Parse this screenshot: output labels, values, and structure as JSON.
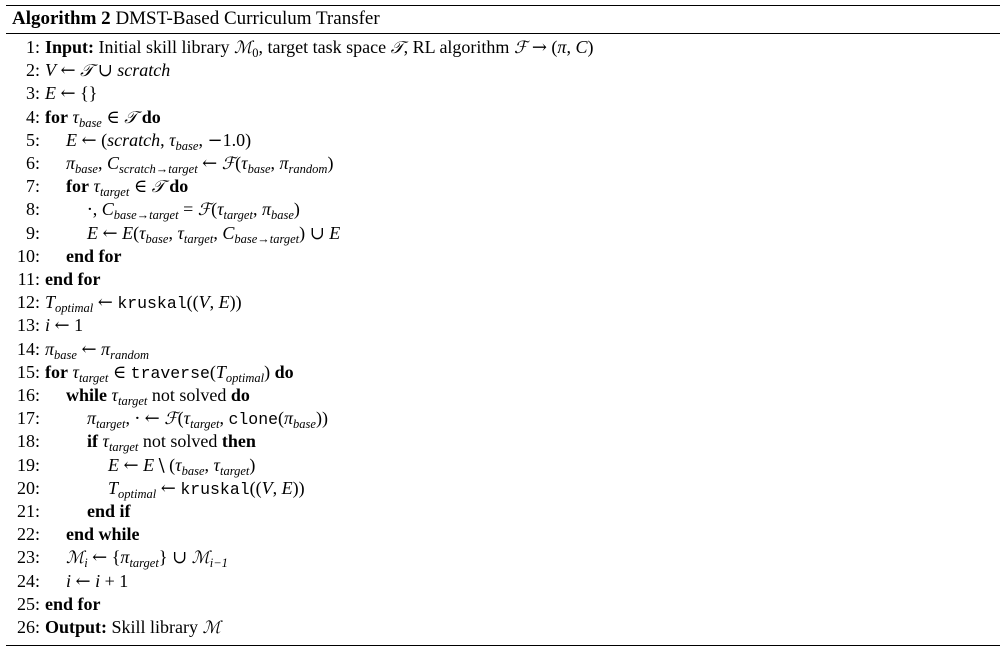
{
  "algorithm": {
    "label": "Algorithm 2",
    "name": "DMST-Based Curriculum Transfer"
  },
  "lines": [
    {
      "n": "1:",
      "indent": 0,
      "html": "<span class='kw'>Input:</span> Initial skill library <span class='sc'>ℳ</span><sub style='font-style:normal'>0</sub>, target task space <span class='sc'>𝒯</span>, RL algorithm <span class='sc'>ℱ</span> <span class='sym'>→</span> (<span class='mi'>π</span>, <span class='mi'>C</span>)"
    },
    {
      "n": "2:",
      "indent": 0,
      "html": "<span class='mi'>V</span> <span class='sym'>←</span> <span class='sc'>𝒯</span> <span class='sym'>∪</span> <span class='mi'>scratch</span>"
    },
    {
      "n": "3:",
      "indent": 0,
      "html": "<span class='mi'>E</span> <span class='sym'>←</span> {}"
    },
    {
      "n": "4:",
      "indent": 0,
      "html": "<span class='kw'>for</span> <span class='mi'>τ</span><sub>base</sub> <span class='sym'>∈</span> <span class='sc'>𝒯</span> <span class='kw'>do</span>"
    },
    {
      "n": "5:",
      "indent": 1,
      "html": "<span class='mi'>E</span> <span class='sym'>←</span> (<span class='mi'>scratch</span>, <span class='mi'>τ</span><sub>base</sub>, <span class='sym'>−</span>1.0)"
    },
    {
      "n": "6:",
      "indent": 1,
      "html": "<span class='mi'>π</span><sub>base</sub>, <span class='mi'>C</span><sub>scratch→target</sub> <span class='sym'>←</span> <span class='sc'>ℱ</span>(<span class='mi'>τ</span><sub>base</sub>, <span class='mi'>π</span><sub>random</sub>)"
    },
    {
      "n": "7:",
      "indent": 1,
      "html": "<span class='kw'>for</span> <span class='mi'>τ</span><sub>target</sub> <span class='sym'>∈</span> <span class='sc'>𝒯</span> <span class='kw'>do</span>"
    },
    {
      "n": "8:",
      "indent": 2,
      "html": "<span class='sym'>·</span>, <span class='mi'>C</span><sub>base→target</sub> = <span class='sc'>ℱ</span>(<span class='mi'>τ</span><sub>target</sub>, <span class='mi'>π</span><sub>base</sub>)"
    },
    {
      "n": "9:",
      "indent": 2,
      "html": "<span class='mi'>E</span> <span class='sym'>←</span> <span class='mi'>E</span>(<span class='mi'>τ</span><sub>base</sub>, <span class='mi'>τ</span><sub>target</sub>, <span class='mi'>C</span><sub>base→target</sub>) <span class='sym'>∪</span> <span class='mi'>E</span>"
    },
    {
      "n": "10:",
      "indent": 1,
      "html": "<span class='kw'>end for</span>"
    },
    {
      "n": "11:",
      "indent": 0,
      "html": "<span class='kw'>end for</span>"
    },
    {
      "n": "12:",
      "indent": 0,
      "html": "<span class='mi'>T</span><sub>optimal</sub> <span class='sym'>←</span> <span class='tt'>kruskal</span>((<span class='mi'>V</span>, <span class='mi'>E</span>))"
    },
    {
      "n": "13:",
      "indent": 0,
      "html": "<span class='mi'>i</span> <span class='sym'>←</span> 1"
    },
    {
      "n": "14:",
      "indent": 0,
      "html": "<span class='mi'>π</span><sub>base</sub> <span class='sym'>←</span> <span class='mi'>π</span><sub>random</sub>"
    },
    {
      "n": "15:",
      "indent": 0,
      "html": "<span class='kw'>for</span> <span class='mi'>τ</span><sub>target</sub> <span class='sym'>∈</span> <span class='tt'>traverse</span>(<span class='mi'>T</span><sub>optimal</sub>) <span class='kw'>do</span>"
    },
    {
      "n": "16:",
      "indent": 1,
      "html": "<span class='kw'>while</span> <span class='mi'>τ</span><sub>target</sub> not solved <span class='kw'>do</span>"
    },
    {
      "n": "17:",
      "indent": 2,
      "html": "<span class='mi'>π</span><sub>target</sub>, <span class='sym'>·</span> <span class='sym'>←</span> <span class='sc'>ℱ</span>(<span class='mi'>τ</span><sub>target</sub>, <span class='tt'>clone</span>(<span class='mi'>π</span><sub>base</sub>))"
    },
    {
      "n": "18:",
      "indent": 2,
      "html": "<span class='kw'>if</span> <span class='mi'>τ</span><sub>target</sub> not solved <span class='kw'>then</span>"
    },
    {
      "n": "19:",
      "indent": 3,
      "html": "<span class='mi'>E</span> <span class='sym'>←</span> <span class='mi'>E</span> <span class='sym'>\\</span> (<span class='mi'>τ</span><sub>base</sub>, <span class='mi'>τ</span><sub>target</sub>)"
    },
    {
      "n": "20:",
      "indent": 3,
      "html": "<span class='mi'>T</span><sub>optimal</sub> <span class='sym'>←</span> <span class='tt'>kruskal</span>((<span class='mi'>V</span>, <span class='mi'>E</span>))"
    },
    {
      "n": "21:",
      "indent": 2,
      "html": "<span class='kw'>end if</span>"
    },
    {
      "n": "22:",
      "indent": 1,
      "html": "<span class='kw'>end while</span>"
    },
    {
      "n": "23:",
      "indent": 1,
      "html": "<span class='sc'>ℳ</span><sub>i</sub> <span class='sym'>←</span> {<span class='mi'>π</span><sub>target</sub>} <span class='sym'>∪</span> <span class='sc'>ℳ</span><sub>i−1</sub>"
    },
    {
      "n": "24:",
      "indent": 1,
      "html": "<span class='mi'>i</span> <span class='sym'>←</span> <span class='mi'>i</span> + 1"
    },
    {
      "n": "25:",
      "indent": 0,
      "html": "<span class='kw'>end for</span>"
    },
    {
      "n": "26:",
      "indent": 0,
      "html": "<span class='kw'>Output:</span> Skill library <span class='sc'>ℳ</span>"
    }
  ]
}
